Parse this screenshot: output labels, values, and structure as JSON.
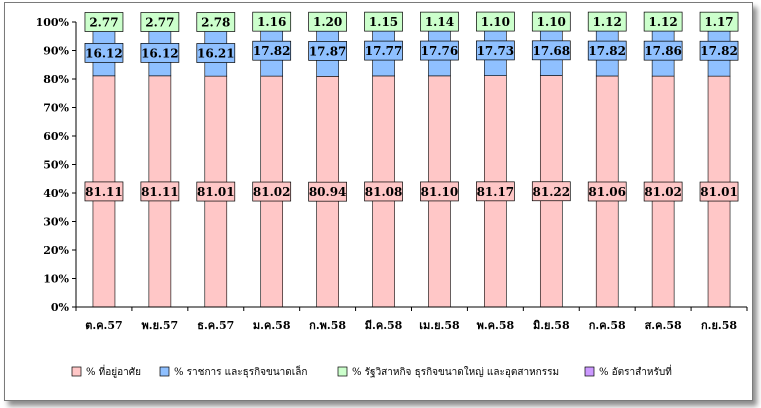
{
  "chart_data": {
    "type": "bar",
    "stacked": true,
    "percent": true,
    "categories": [
      "ต.ค.57",
      "พ.ย.57",
      "ธ.ค.57",
      "ม.ค.58",
      "ก.พ.58",
      "มี.ค.58",
      "เม.ย.58",
      "พ.ค.58",
      "มิ.ย.58",
      "ก.ค.58",
      "ส.ค.58",
      "ก.ย.58"
    ],
    "series": [
      {
        "name": "% ที่อยู่อาศัย",
        "color": "#ffc7c7",
        "values": [
          81.11,
          81.11,
          81.01,
          81.02,
          80.94,
          81.08,
          81.1,
          81.17,
          81.22,
          81.06,
          81.02,
          81.01
        ]
      },
      {
        "name": "% ราชการ และธุรกิจขนาดเล็ก",
        "color": "#8fc0ff",
        "values": [
          16.12,
          16.12,
          16.21,
          17.82,
          17.87,
          17.77,
          17.76,
          17.73,
          17.68,
          17.82,
          17.86,
          17.82
        ]
      },
      {
        "name": "% รัฐวิสาหกิจ ธุรกิจขนาดใหญ่ และอุตสาหกรรม",
        "color": "#ccffcc",
        "values": [
          2.77,
          2.77,
          2.78,
          1.16,
          1.2,
          1.15,
          1.14,
          1.1,
          1.1,
          1.12,
          1.12,
          1.17
        ]
      },
      {
        "name": "% อัตราสำหรับที่",
        "color": "#cc99ff",
        "values": [
          0,
          0,
          0,
          0,
          0,
          0,
          0,
          0,
          0,
          0,
          0,
          0
        ]
      }
    ],
    "y_ticks": [
      "0%",
      "10%",
      "20%",
      "30%",
      "40%",
      "50%",
      "60%",
      "70%",
      "80%",
      "90%",
      "100%"
    ],
    "ylim": [
      0,
      100
    ],
    "grid": false,
    "legend": "bottom"
  }
}
